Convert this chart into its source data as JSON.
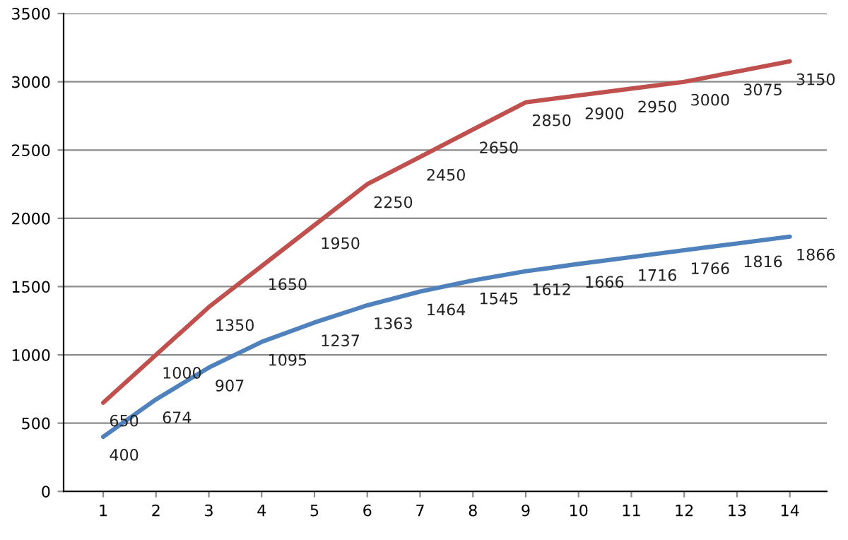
{
  "chart_data": {
    "type": "line",
    "categories": [
      "1",
      "2",
      "3",
      "4",
      "5",
      "6",
      "7",
      "8",
      "9",
      "10",
      "11",
      "12",
      "13",
      "14"
    ],
    "series": [
      {
        "color": "#c0504d",
        "values": [
          650,
          1000,
          1350,
          1650,
          1950,
          2250,
          2450,
          2650,
          2850,
          2900,
          2950,
          3000,
          3075,
          3150
        ]
      },
      {
        "color": "#4f81bd",
        "values": [
          400,
          674,
          907,
          1095,
          1237,
          1363,
          1464,
          1545,
          1612,
          1666,
          1716,
          1766,
          1816,
          1866
        ]
      }
    ],
    "ylim": [
      0,
      3500
    ],
    "yticks": [
      0,
      500,
      1000,
      1500,
      2000,
      2500,
      3000,
      3500
    ],
    "grid": "y",
    "data_labels": true,
    "marker": "none",
    "line_style": "solid"
  }
}
